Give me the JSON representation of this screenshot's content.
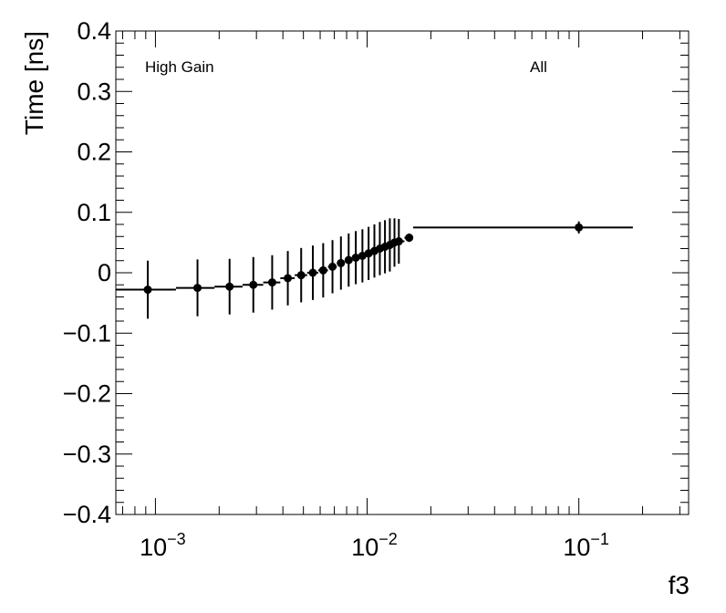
{
  "chart_data": {
    "type": "scatter",
    "title": "",
    "xlabel": "f3",
    "ylabel": "Time [ns]",
    "x_scale": "log",
    "xlim": [
      0.00065,
      0.33
    ],
    "ylim": [
      -0.4,
      0.4
    ],
    "grid": false,
    "annotations": [
      {
        "text": "High Gain",
        "position": "top-left"
      },
      {
        "text": "All",
        "position": "top-right"
      }
    ],
    "x_ticks": [
      {
        "base": "10",
        "exp": "−3",
        "value": 0.001
      },
      {
        "base": "10",
        "exp": "−2",
        "value": 0.01
      },
      {
        "base": "10",
        "exp": "−1",
        "value": 0.1
      }
    ],
    "y_ticks": [
      {
        "label": "0.4",
        "value": 0.4
      },
      {
        "label": "0.3",
        "value": 0.3
      },
      {
        "label": "0.2",
        "value": 0.2
      },
      {
        "label": "0.1",
        "value": 0.1
      },
      {
        "label": "0",
        "value": 0
      },
      {
        "label": "−0.1",
        "value": -0.1
      },
      {
        "label": "−0.2",
        "value": -0.2
      },
      {
        "label": "−0.3",
        "value": -0.3
      },
      {
        "label": "−0.4",
        "value": -0.4
      }
    ],
    "points": [
      {
        "x": 0.00092,
        "y": -0.028,
        "err": 0.048,
        "xlo": 0.00065,
        "xhi": 0.00125
      },
      {
        "x": 0.00158,
        "y": -0.025,
        "err": 0.047,
        "xlo": 0.00125,
        "xhi": 0.0019
      },
      {
        "x": 0.00224,
        "y": -0.023,
        "err": 0.046,
        "xlo": 0.0019,
        "xhi": 0.00258
      },
      {
        "x": 0.0029,
        "y": -0.02,
        "err": 0.046,
        "xlo": 0.00258,
        "xhi": 0.00323
      },
      {
        "x": 0.00356,
        "y": -0.016,
        "err": 0.045,
        "xlo": 0.00323,
        "xhi": 0.00389
      },
      {
        "x": 0.00422,
        "y": -0.009,
        "err": 0.045,
        "xlo": 0.00389,
        "xhi": 0.00455
      },
      {
        "x": 0.00488,
        "y": -0.004,
        "err": 0.045,
        "xlo": 0.00455,
        "xhi": 0.00521
      },
      {
        "x": 0.00554,
        "y": 0.0,
        "err": 0.045,
        "xlo": 0.00521,
        "xhi": 0.00587
      },
      {
        "x": 0.0062,
        "y": 0.004,
        "err": 0.045,
        "xlo": 0.00587,
        "xhi": 0.00653
      },
      {
        "x": 0.00686,
        "y": 0.01,
        "err": 0.044,
        "xlo": 0.00653,
        "xhi": 0.00719
      },
      {
        "x": 0.00752,
        "y": 0.016,
        "err": 0.044,
        "xlo": 0.00719,
        "xhi": 0.00785
      },
      {
        "x": 0.00818,
        "y": 0.021,
        "err": 0.044,
        "xlo": 0.00785,
        "xhi": 0.00851
      },
      {
        "x": 0.00884,
        "y": 0.025,
        "err": 0.044,
        "xlo": 0.00851,
        "xhi": 0.00917
      },
      {
        "x": 0.0095,
        "y": 0.028,
        "err": 0.044,
        "xlo": 0.00917,
        "xhi": 0.00983
      },
      {
        "x": 0.01016,
        "y": 0.032,
        "err": 0.044,
        "xlo": 0.00983,
        "xhi": 0.01049
      },
      {
        "x": 0.01082,
        "y": 0.036,
        "err": 0.044,
        "xlo": 0.01049,
        "xhi": 0.01115
      },
      {
        "x": 0.01148,
        "y": 0.04,
        "err": 0.044,
        "xlo": 0.01115,
        "xhi": 0.01181
      },
      {
        "x": 0.01214,
        "y": 0.043,
        "err": 0.044,
        "xlo": 0.01181,
        "xhi": 0.01247
      },
      {
        "x": 0.0128,
        "y": 0.046,
        "err": 0.044,
        "xlo": 0.01247,
        "xhi": 0.01313
      },
      {
        "x": 0.01346,
        "y": 0.05,
        "err": 0.04,
        "xlo": 0.01313,
        "xhi": 0.01379
      },
      {
        "x": 0.01412,
        "y": 0.052,
        "err": 0.037,
        "xlo": 0.01379,
        "xhi": 0.015
      },
      {
        "x": 0.0158,
        "y": 0.058,
        "err": 0.007,
        "xlo": 0.015,
        "xhi": 0.0165
      },
      {
        "x": 0.1,
        "y": 0.075,
        "err": 0.01,
        "xlo": 0.0165,
        "xhi": 0.18
      }
    ]
  }
}
